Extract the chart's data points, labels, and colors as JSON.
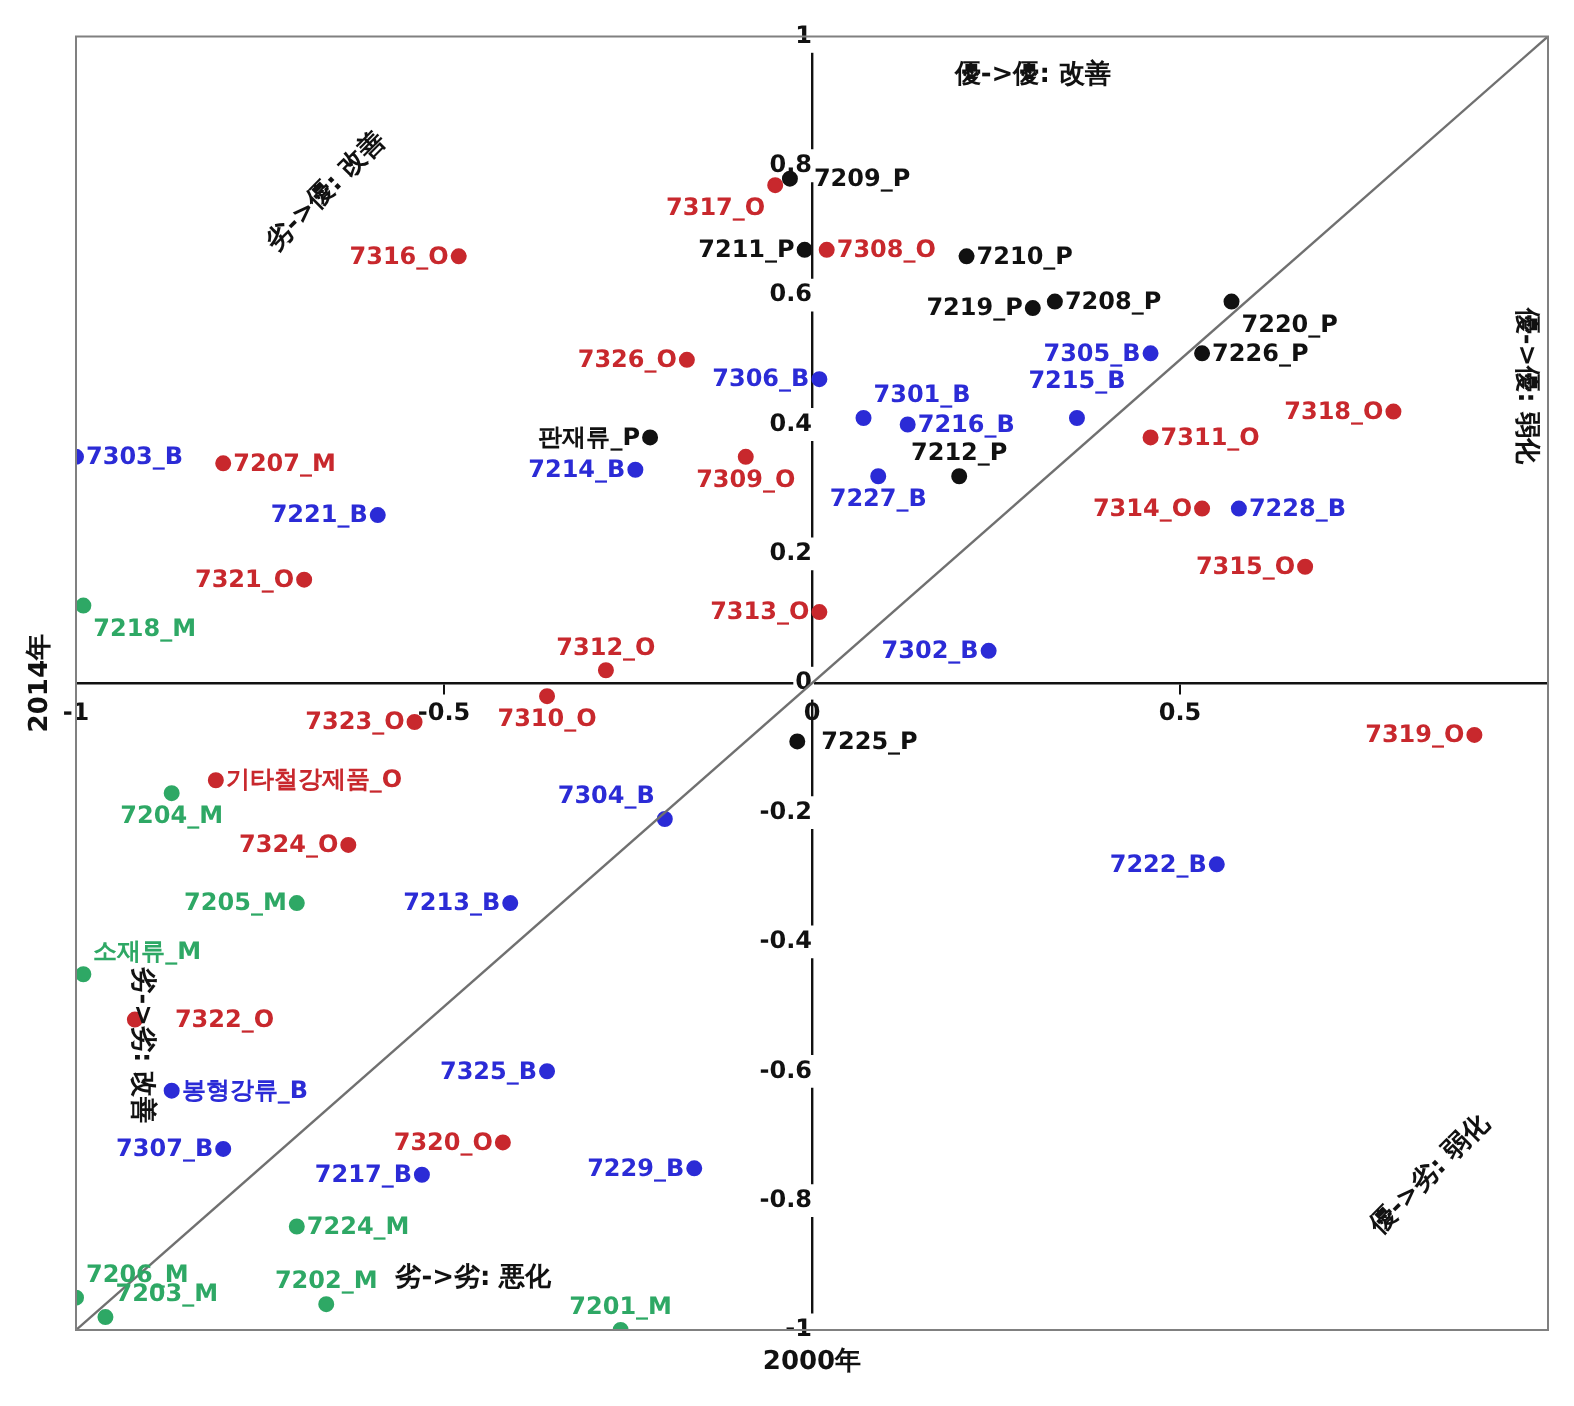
{
  "chart_data": {
    "type": "scatter",
    "xlabel": "2000年",
    "ylabel": "2014年",
    "xlim": [
      -1,
      1
    ],
    "ylim": [
      -1,
      1
    ],
    "xticks": [
      -1,
      -0.5,
      0,
      0.5
    ],
    "yticks": [
      -1,
      -0.8,
      -0.6,
      -0.4,
      -0.2,
      0,
      0.2,
      0.4,
      0.6,
      0.8,
      1
    ],
    "marker": "circle",
    "annotations": [
      "劣->優: 改善",
      "優->優: 改善",
      "優->優: 弱化",
      "劣->劣: 改善",
      "劣->劣: 悪化",
      "優->劣: 弱化"
    ],
    "series": [
      {
        "type": "line",
        "color": "#707070",
        "marker": "none",
        "x": [
          -1,
          1
        ],
        "values": [
          -1,
          1
        ]
      },
      {
        "name": "7317_O",
        "color": "#c8282d",
        "x": [
          -0.05
        ],
        "values": [
          0.77
        ]
      },
      {
        "name": "7316_O",
        "color": "#c8282d",
        "x": [
          -0.48
        ],
        "values": [
          0.66
        ]
      },
      {
        "name": "7326_O",
        "color": "#c8282d",
        "x": [
          -0.17
        ],
        "values": [
          0.5
        ]
      },
      {
        "name": "7309_O",
        "color": "#c8282d",
        "x": [
          -0.09
        ],
        "values": [
          0.35
        ]
      },
      {
        "name": "7321_O",
        "color": "#c8282d",
        "x": [
          -0.69
        ],
        "values": [
          0.16
        ]
      },
      {
        "name": "7312_O",
        "color": "#c8282d",
        "x": [
          -0.28
        ],
        "values": [
          0.02
        ]
      },
      {
        "name": "7308_O",
        "color": "#c8282d",
        "x": [
          0.02
        ],
        "values": [
          0.67
        ]
      },
      {
        "name": "7311_O",
        "color": "#c8282d",
        "x": [
          0.46
        ],
        "values": [
          0.38
        ]
      },
      {
        "name": "7318_O",
        "color": "#c8282d",
        "x": [
          0.79
        ],
        "values": [
          0.42
        ]
      },
      {
        "name": "7314_O",
        "color": "#c8282d",
        "x": [
          0.53
        ],
        "values": [
          0.27
        ]
      },
      {
        "name": "7315_O",
        "color": "#c8282d",
        "x": [
          0.67
        ],
        "values": [
          0.18
        ]
      },
      {
        "name": "7313_O",
        "color": "#c8282d",
        "x": [
          0.01
        ],
        "values": [
          0.11
        ]
      },
      {
        "name": "7310_O",
        "color": "#c8282d",
        "x": [
          -0.36
        ],
        "values": [
          -0.02
        ]
      },
      {
        "name": "7323_O",
        "color": "#c8282d",
        "x": [
          -0.54
        ],
        "values": [
          -0.06
        ]
      },
      {
        "name": "기타철강제품_O",
        "color": "#c8282d",
        "x": [
          -0.81
        ],
        "values": [
          -0.15
        ]
      },
      {
        "name": "7324_O",
        "color": "#c8282d",
        "x": [
          -0.63
        ],
        "values": [
          -0.25
        ]
      },
      {
        "name": "7322_O",
        "color": "#c8282d",
        "x": [
          -0.92
        ],
        "values": [
          -0.52
        ]
      },
      {
        "name": "7320_O",
        "color": "#c8282d",
        "x": [
          -0.42
        ],
        "values": [
          -0.71
        ]
      },
      {
        "name": "7319_O",
        "color": "#c8282d",
        "x": [
          0.9
        ],
        "values": [
          -0.08
        ]
      },
      {
        "name": "7209_P",
        "color": "#111111",
        "x": [
          -0.03
        ],
        "values": [
          0.78
        ]
      },
      {
        "name": "판재류_P",
        "color": "#111111",
        "x": [
          -0.22
        ],
        "values": [
          0.38
        ]
      },
      {
        "name": "7211_P",
        "color": "#111111",
        "x": [
          -0.01
        ],
        "values": [
          0.67
        ]
      },
      {
        "name": "7210_P",
        "color": "#111111",
        "x": [
          0.21
        ],
        "values": [
          0.66
        ]
      },
      {
        "name": "7208_P",
        "color": "#111111",
        "x": [
          0.33
        ],
        "values": [
          0.59
        ]
      },
      {
        "name": "7219_P",
        "color": "#111111",
        "x": [
          0.3
        ],
        "values": [
          0.58
        ]
      },
      {
        "name": "7220_P",
        "color": "#111111",
        "x": [
          0.57
        ],
        "values": [
          0.59
        ]
      },
      {
        "name": "7226_P",
        "color": "#111111",
        "x": [
          0.53
        ],
        "values": [
          0.51
        ]
      },
      {
        "name": "7212_P",
        "color": "#111111",
        "x": [
          0.2
        ],
        "values": [
          0.32
        ]
      },
      {
        "name": "7225_P",
        "color": "#111111",
        "x": [
          -0.02
        ],
        "values": [
          -0.09
        ]
      },
      {
        "name": "7214_B",
        "color": "#2b2bd6",
        "x": [
          -0.24
        ],
        "values": [
          0.33
        ]
      },
      {
        "name": "7303_B",
        "color": "#2b2bd6",
        "x": [
          -1
        ],
        "values": [
          0.35
        ]
      },
      {
        "name": "7221_B",
        "color": "#2b2bd6",
        "x": [
          -0.59
        ],
        "values": [
          0.26
        ]
      },
      {
        "name": "7305_B",
        "color": "#2b2bd6",
        "x": [
          0.46
        ],
        "values": [
          0.51
        ]
      },
      {
        "name": "7306_B",
        "color": "#2b2bd6",
        "x": [
          0.01
        ],
        "values": [
          0.47
        ]
      },
      {
        "name": "7301_B",
        "color": "#2b2bd6",
        "x": [
          0.07
        ],
        "values": [
          0.41
        ]
      },
      {
        "name": "7215_B",
        "color": "#2b2bd6",
        "x": [
          0.36
        ],
        "values": [
          0.41
        ]
      },
      {
        "name": "7216_B",
        "color": "#2b2bd6",
        "x": [
          0.13
        ],
        "values": [
          0.4
        ]
      },
      {
        "name": "7227_B",
        "color": "#2b2bd6",
        "x": [
          0.09
        ],
        "values": [
          0.32
        ]
      },
      {
        "name": "7228_B",
        "color": "#2b2bd6",
        "x": [
          0.58
        ],
        "values": [
          0.27
        ]
      },
      {
        "name": "7302_B",
        "color": "#2b2bd6",
        "x": [
          0.24
        ],
        "values": [
          0.05
        ]
      },
      {
        "name": "7304_B",
        "color": "#2b2bd6",
        "x": [
          -0.2
        ],
        "values": [
          -0.21
        ]
      },
      {
        "name": "7213_B",
        "color": "#2b2bd6",
        "x": [
          -0.41
        ],
        "values": [
          -0.34
        ]
      },
      {
        "name": "봉형강류_B",
        "color": "#2b2bd6",
        "x": [
          -0.87
        ],
        "values": [
          -0.63
        ]
      },
      {
        "name": "7325_B",
        "color": "#2b2bd6",
        "x": [
          -0.36
        ],
        "values": [
          -0.6
        ]
      },
      {
        "name": "7229_B",
        "color": "#2b2bd6",
        "x": [
          -0.16
        ],
        "values": [
          -0.75
        ]
      },
      {
        "name": "7217_B",
        "color": "#2b2bd6",
        "x": [
          -0.53
        ],
        "values": [
          -0.76
        ]
      },
      {
        "name": "7307_B",
        "color": "#2b2bd6",
        "x": [
          -0.8
        ],
        "values": [
          -0.72
        ]
      },
      {
        "name": "7222_B",
        "color": "#2b2bd6",
        "x": [
          0.55
        ],
        "values": [
          -0.28
        ]
      },
      {
        "name": "7207_M",
        "color": "#c8282d",
        "x": [
          -0.8
        ],
        "values": [
          0.34
        ]
      },
      {
        "name": "7218_M",
        "color": "#2ea865",
        "x": [
          -0.99
        ],
        "values": [
          0.12
        ]
      },
      {
        "name": "7204_M",
        "color": "#2ea865",
        "x": [
          -0.87
        ],
        "values": [
          -0.17
        ]
      },
      {
        "name": "7205_M",
        "color": "#2ea865",
        "x": [
          -0.7
        ],
        "values": [
          -0.34
        ]
      },
      {
        "name": "소재류_M",
        "color": "#2ea865",
        "x": [
          -0.99
        ],
        "values": [
          -0.45
        ]
      },
      {
        "name": "7224_M",
        "color": "#2ea865",
        "x": [
          -0.7
        ],
        "values": [
          -0.84
        ]
      },
      {
        "name": "7206_M",
        "color": "#2ea865",
        "x": [
          -1
        ],
        "values": [
          -0.95
        ]
      },
      {
        "name": "7203_M",
        "color": "#2ea865",
        "x": [
          -0.96
        ],
        "values": [
          -0.98
        ]
      },
      {
        "name": "7202_M",
        "color": "#2ea865",
        "x": [
          -0.66
        ],
        "values": [
          -0.96
        ]
      },
      {
        "name": "7201_M",
        "color": "#2ea865",
        "x": [
          -0.26
        ],
        "values": [
          -1
        ]
      }
    ]
  }
}
